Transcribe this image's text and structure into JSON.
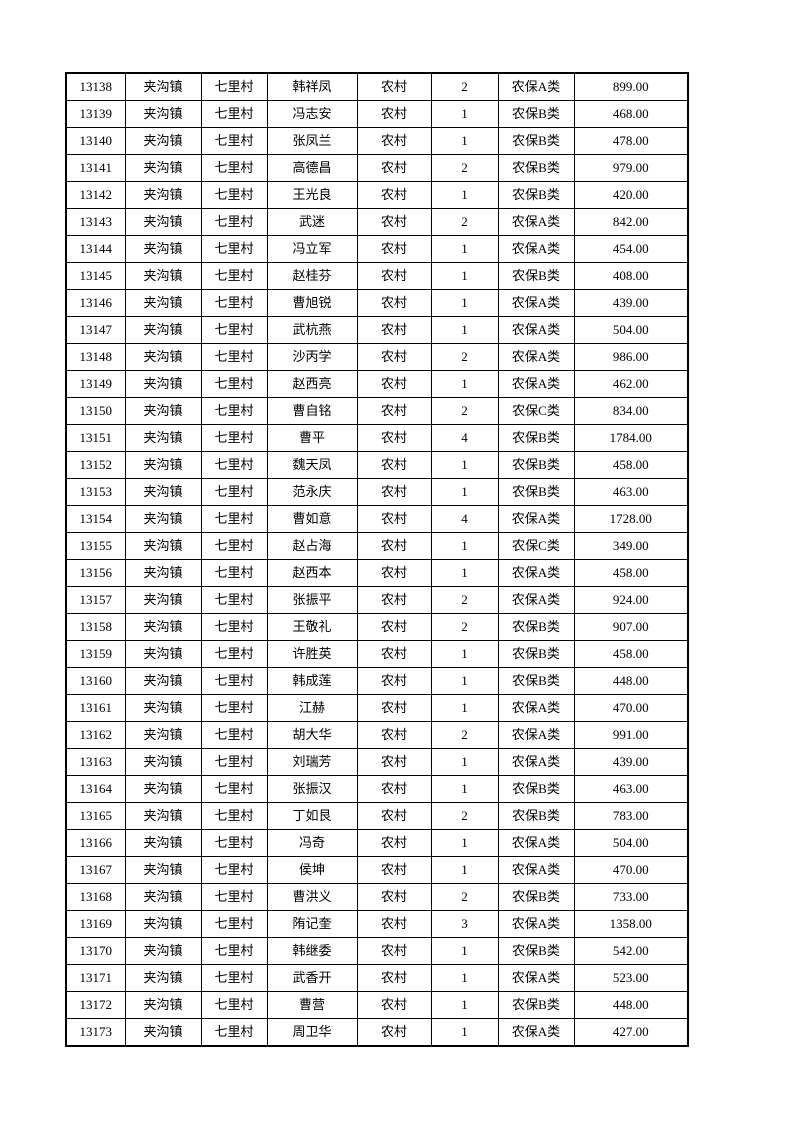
{
  "page": {
    "background_color": "#ffffff",
    "text_color": "#000000",
    "border_color": "#000000"
  },
  "table": {
    "column_keys": [
      "serial",
      "town",
      "village",
      "name",
      "residence",
      "count",
      "category",
      "amount"
    ],
    "rows": [
      [
        "13138",
        "夹沟镇",
        "七里村",
        "韩祥凤",
        "农村",
        "2",
        "农保A类",
        "899.00"
      ],
      [
        "13139",
        "夹沟镇",
        "七里村",
        "冯志安",
        "农村",
        "1",
        "农保B类",
        "468.00"
      ],
      [
        "13140",
        "夹沟镇",
        "七里村",
        "张凤兰",
        "农村",
        "1",
        "农保B类",
        "478.00"
      ],
      [
        "13141",
        "夹沟镇",
        "七里村",
        "高德昌",
        "农村",
        "2",
        "农保B类",
        "979.00"
      ],
      [
        "13142",
        "夹沟镇",
        "七里村",
        "王光良",
        "农村",
        "1",
        "农保B类",
        "420.00"
      ],
      [
        "13143",
        "夹沟镇",
        "七里村",
        "武迷",
        "农村",
        "2",
        "农保A类",
        "842.00"
      ],
      [
        "13144",
        "夹沟镇",
        "七里村",
        "冯立军",
        "农村",
        "1",
        "农保A类",
        "454.00"
      ],
      [
        "13145",
        "夹沟镇",
        "七里村",
        "赵桂芬",
        "农村",
        "1",
        "农保B类",
        "408.00"
      ],
      [
        "13146",
        "夹沟镇",
        "七里村",
        "曹旭锐",
        "农村",
        "1",
        "农保A类",
        "439.00"
      ],
      [
        "13147",
        "夹沟镇",
        "七里村",
        "武杭燕",
        "农村",
        "1",
        "农保A类",
        "504.00"
      ],
      [
        "13148",
        "夹沟镇",
        "七里村",
        "沙丙学",
        "农村",
        "2",
        "农保A类",
        "986.00"
      ],
      [
        "13149",
        "夹沟镇",
        "七里村",
        "赵西亮",
        "农村",
        "1",
        "农保A类",
        "462.00"
      ],
      [
        "13150",
        "夹沟镇",
        "七里村",
        "曹自铭",
        "农村",
        "2",
        "农保C类",
        "834.00"
      ],
      [
        "13151",
        "夹沟镇",
        "七里村",
        "曹平",
        "农村",
        "4",
        "农保B类",
        "1784.00"
      ],
      [
        "13152",
        "夹沟镇",
        "七里村",
        "魏天凤",
        "农村",
        "1",
        "农保B类",
        "458.00"
      ],
      [
        "13153",
        "夹沟镇",
        "七里村",
        "范永庆",
        "农村",
        "1",
        "农保B类",
        "463.00"
      ],
      [
        "13154",
        "夹沟镇",
        "七里村",
        "曹如意",
        "农村",
        "4",
        "农保A类",
        "1728.00"
      ],
      [
        "13155",
        "夹沟镇",
        "七里村",
        "赵占海",
        "农村",
        "1",
        "农保C类",
        "349.00"
      ],
      [
        "13156",
        "夹沟镇",
        "七里村",
        "赵西本",
        "农村",
        "1",
        "农保A类",
        "458.00"
      ],
      [
        "13157",
        "夹沟镇",
        "七里村",
        "张振平",
        "农村",
        "2",
        "农保A类",
        "924.00"
      ],
      [
        "13158",
        "夹沟镇",
        "七里村",
        "王敬礼",
        "农村",
        "2",
        "农保B类",
        "907.00"
      ],
      [
        "13159",
        "夹沟镇",
        "七里村",
        "许胜英",
        "农村",
        "1",
        "农保B类",
        "458.00"
      ],
      [
        "13160",
        "夹沟镇",
        "七里村",
        "韩成莲",
        "农村",
        "1",
        "农保B类",
        "448.00"
      ],
      [
        "13161",
        "夹沟镇",
        "七里村",
        "江赫",
        "农村",
        "1",
        "农保A类",
        "470.00"
      ],
      [
        "13162",
        "夹沟镇",
        "七里村",
        "胡大华",
        "农村",
        "2",
        "农保A类",
        "991.00"
      ],
      [
        "13163",
        "夹沟镇",
        "七里村",
        "刘瑞芳",
        "农村",
        "1",
        "农保A类",
        "439.00"
      ],
      [
        "13164",
        "夹沟镇",
        "七里村",
        "张振汉",
        "农村",
        "1",
        "农保B类",
        "463.00"
      ],
      [
        "13165",
        "夹沟镇",
        "七里村",
        "丁如艮",
        "农村",
        "2",
        "农保B类",
        "783.00"
      ],
      [
        "13166",
        "夹沟镇",
        "七里村",
        "冯奇",
        "农村",
        "1",
        "农保A类",
        "504.00"
      ],
      [
        "13167",
        "夹沟镇",
        "七里村",
        "侯坤",
        "农村",
        "1",
        "农保A类",
        "470.00"
      ],
      [
        "13168",
        "夹沟镇",
        "七里村",
        "曹洪义",
        "农村",
        "2",
        "农保B类",
        "733.00"
      ],
      [
        "13169",
        "夹沟镇",
        "七里村",
        "陏记奎",
        "农村",
        "3",
        "农保A类",
        "1358.00"
      ],
      [
        "13170",
        "夹沟镇",
        "七里村",
        "韩继委",
        "农村",
        "1",
        "农保B类",
        "542.00"
      ],
      [
        "13171",
        "夹沟镇",
        "七里村",
        "武香开",
        "农村",
        "1",
        "农保A类",
        "523.00"
      ],
      [
        "13172",
        "夹沟镇",
        "七里村",
        "曹营",
        "农村",
        "1",
        "农保B类",
        "448.00"
      ],
      [
        "13173",
        "夹沟镇",
        "七里村",
        "周卫华",
        "农村",
        "1",
        "农保A类",
        "427.00"
      ]
    ]
  }
}
